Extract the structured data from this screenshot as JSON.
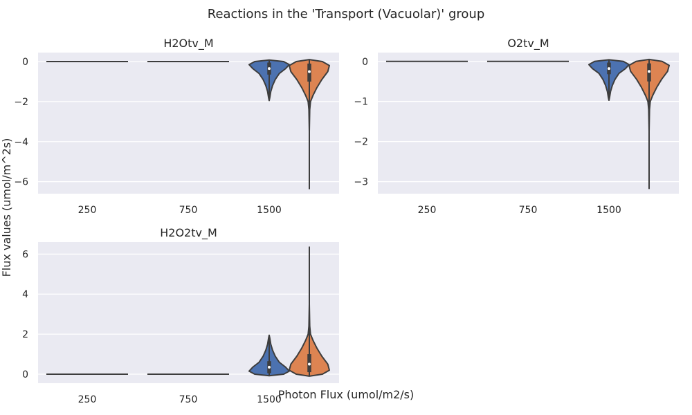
{
  "figure": {
    "title": "Reactions in the 'Transport (Vacuolar)' group",
    "xlabel": "Photon Flux (umol/m2/s)",
    "ylabel": "Flux values (umol/m^2s)"
  },
  "colors": {
    "background": "#ffffff",
    "axes_face": "#eaeaf2",
    "grid": "#ffffff",
    "text": "#262626",
    "violin_outline": "#3d3d3d",
    "box": "#3d3d3d",
    "median": "#ffffff",
    "palette": [
      "#4c72b0",
      "#dd8452"
    ]
  },
  "chart_data": [
    {
      "type": "violin",
      "title": "H2Otv_M",
      "categories": [
        "250",
        "750",
        "1500",
        "1500"
      ],
      "yticks": [
        0,
        -2,
        -4,
        -6
      ],
      "ylim": [
        -6.6,
        0.45
      ],
      "grid": true,
      "violins": [
        {
          "category": "250",
          "color_index": null,
          "min": 0,
          "max": 0,
          "q1": 0,
          "median": 0,
          "q3": 0,
          "shape": "flat"
        },
        {
          "category": "750",
          "color_index": null,
          "min": 0,
          "max": 0,
          "q1": 0,
          "median": 0,
          "q3": 0,
          "shape": "flat"
        },
        {
          "category": "1500",
          "color_index": 0,
          "min": -1.95,
          "max": 0.08,
          "q1": -0.65,
          "median": -0.35,
          "q3": -0.05,
          "profile": [
            [
              0.08,
              0.0
            ],
            [
              0.0,
              0.72
            ],
            [
              -0.15,
              1.0
            ],
            [
              -0.35,
              0.82
            ],
            [
              -0.6,
              0.5
            ],
            [
              -0.9,
              0.3
            ],
            [
              -1.2,
              0.17
            ],
            [
              -1.5,
              0.08
            ],
            [
              -1.8,
              0.03
            ],
            [
              -1.95,
              0.0
            ]
          ]
        },
        {
          "category": "1500",
          "color_index": 1,
          "min": -6.35,
          "max": 0.1,
          "q1": -1.0,
          "median": -0.5,
          "q3": -0.1,
          "profile": [
            [
              0.1,
              0.0
            ],
            [
              0.0,
              0.65
            ],
            [
              -0.2,
              1.0
            ],
            [
              -0.5,
              0.92
            ],
            [
              -0.9,
              0.62
            ],
            [
              -1.3,
              0.38
            ],
            [
              -1.7,
              0.18
            ],
            [
              -2.0,
              0.06
            ],
            [
              -2.4,
              0.02
            ],
            [
              -3.5,
              0.0
            ],
            [
              -6.35,
              0.0
            ]
          ]
        }
      ]
    },
    {
      "type": "violin",
      "title": "O2tv_M",
      "categories": [
        "250",
        "750",
        "1500",
        "1500"
      ],
      "yticks": [
        0,
        -1,
        -2,
        -3
      ],
      "ylim": [
        -3.3,
        0.22
      ],
      "grid": true,
      "violins": [
        {
          "category": "250",
          "color_index": null,
          "min": 0,
          "max": 0,
          "q1": 0,
          "median": 0,
          "q3": 0,
          "shape": "flat"
        },
        {
          "category": "750",
          "color_index": null,
          "min": 0,
          "max": 0,
          "q1": 0,
          "median": 0,
          "q3": 0,
          "shape": "flat"
        },
        {
          "category": "1500",
          "color_index": 0,
          "min": -0.97,
          "max": 0.04,
          "q1": -0.32,
          "median": -0.18,
          "q3": -0.03,
          "profile": [
            [
              0.04,
              0.0
            ],
            [
              0.0,
              0.72
            ],
            [
              -0.08,
              1.0
            ],
            [
              -0.18,
              0.82
            ],
            [
              -0.3,
              0.5
            ],
            [
              -0.45,
              0.3
            ],
            [
              -0.6,
              0.17
            ],
            [
              -0.75,
              0.08
            ],
            [
              -0.9,
              0.03
            ],
            [
              -0.97,
              0.0
            ]
          ]
        },
        {
          "category": "1500",
          "color_index": 1,
          "min": -3.17,
          "max": 0.05,
          "q1": -0.5,
          "median": -0.25,
          "q3": -0.05,
          "profile": [
            [
              0.05,
              0.0
            ],
            [
              0.0,
              0.65
            ],
            [
              -0.1,
              1.0
            ],
            [
              -0.25,
              0.92
            ],
            [
              -0.45,
              0.62
            ],
            [
              -0.65,
              0.38
            ],
            [
              -0.85,
              0.18
            ],
            [
              -1.0,
              0.06
            ],
            [
              -1.2,
              0.02
            ],
            [
              -1.75,
              0.0
            ],
            [
              -3.17,
              0.0
            ]
          ]
        }
      ]
    },
    {
      "type": "violin",
      "title": "H2O2tv_M",
      "categories": [
        "250",
        "750",
        "1500",
        "1500"
      ],
      "yticks": [
        0,
        2,
        4,
        6
      ],
      "ylim": [
        -0.45,
        6.6
      ],
      "grid": true,
      "violins": [
        {
          "category": "250",
          "color_index": null,
          "min": 0,
          "max": 0,
          "q1": 0,
          "median": 0,
          "q3": 0,
          "shape": "flat"
        },
        {
          "category": "750",
          "color_index": null,
          "min": 0,
          "max": 0,
          "q1": 0,
          "median": 0,
          "q3": 0,
          "shape": "flat"
        },
        {
          "category": "1500",
          "color_index": 0,
          "min": -0.08,
          "max": 1.95,
          "q1": 0.05,
          "median": 0.35,
          "q3": 0.65,
          "profile": [
            [
              -0.08,
              0.0
            ],
            [
              0.0,
              0.72
            ],
            [
              0.15,
              1.0
            ],
            [
              0.35,
              0.82
            ],
            [
              0.6,
              0.5
            ],
            [
              0.9,
              0.3
            ],
            [
              1.2,
              0.17
            ],
            [
              1.5,
              0.08
            ],
            [
              1.8,
              0.03
            ],
            [
              1.95,
              0.0
            ]
          ]
        },
        {
          "category": "1500",
          "color_index": 1,
          "min": -0.1,
          "max": 6.35,
          "q1": 0.1,
          "median": 0.5,
          "q3": 1.0,
          "profile": [
            [
              -0.1,
              0.0
            ],
            [
              0.0,
              0.65
            ],
            [
              0.2,
              1.0
            ],
            [
              0.5,
              0.92
            ],
            [
              0.9,
              0.62
            ],
            [
              1.3,
              0.38
            ],
            [
              1.7,
              0.18
            ],
            [
              2.0,
              0.06
            ],
            [
              2.4,
              0.02
            ],
            [
              3.5,
              0.0
            ],
            [
              6.35,
              0.0
            ]
          ]
        }
      ]
    }
  ]
}
